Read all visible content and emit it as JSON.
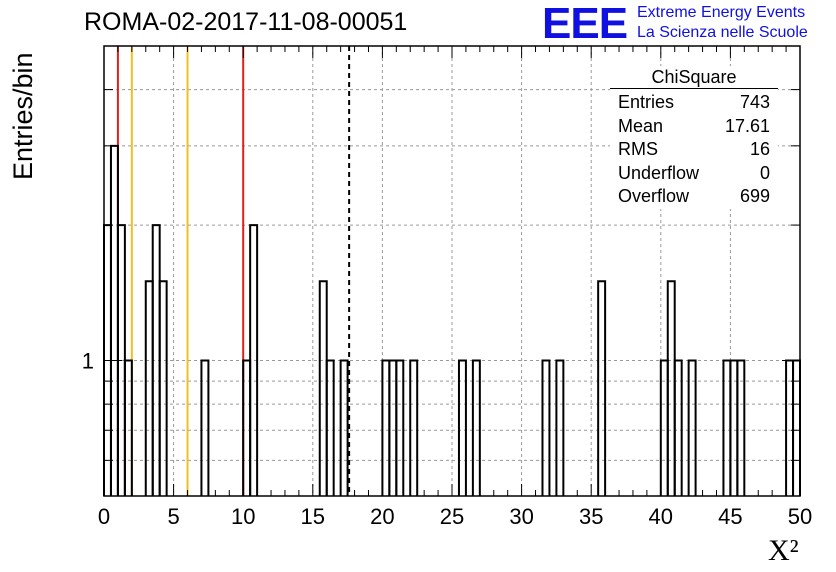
{
  "title": "ROMA-02-2017-11-08-00051",
  "logo": {
    "mark": "EEE",
    "line1": "Extreme Energy Events",
    "line2": "La Scienza nelle Scuole",
    "color": "#1010e0"
  },
  "stats_box": {
    "name": "ChiSquare",
    "rows": [
      {
        "label": "Entries",
        "value": "743"
      },
      {
        "label": "Mean",
        "value": "17.61"
      },
      {
        "label": "RMS",
        "value": "16"
      },
      {
        "label": "Underflow",
        "value": "0"
      },
      {
        "label": "Overflow",
        "value": "699"
      }
    ]
  },
  "chart_data": {
    "type": "histogram",
    "title": "ROMA-02-2017-11-08-00051",
    "xlabel": "X²",
    "ylabel": "Entries/bin",
    "xlim": [
      0,
      50
    ],
    "ylim": [
      0.5,
      5
    ],
    "y_scale": "log",
    "grid": true,
    "bin_width": 0.5,
    "x_ticks": [
      0,
      5,
      10,
      15,
      20,
      25,
      30,
      35,
      40,
      45,
      50
    ],
    "y_tick_labels": [
      "1"
    ],
    "bins": [
      {
        "x": 0.0,
        "y": 2
      },
      {
        "x": 0.5,
        "y": 3
      },
      {
        "x": 1.0,
        "y": 2
      },
      {
        "x": 1.5,
        "y": 1
      },
      {
        "x": 3.0,
        "y": 1.5
      },
      {
        "x": 3.5,
        "y": 2
      },
      {
        "x": 4.0,
        "y": 1.5
      },
      {
        "x": 7.0,
        "y": 1
      },
      {
        "x": 10.0,
        "y": 1
      },
      {
        "x": 10.5,
        "y": 2
      },
      {
        "x": 15.5,
        "y": 1.5
      },
      {
        "x": 16.0,
        "y": 1
      },
      {
        "x": 17.0,
        "y": 1
      },
      {
        "x": 20.0,
        "y": 1
      },
      {
        "x": 20.5,
        "y": 1
      },
      {
        "x": 21.0,
        "y": 1
      },
      {
        "x": 22.0,
        "y": 1
      },
      {
        "x": 25.5,
        "y": 1
      },
      {
        "x": 26.5,
        "y": 1
      },
      {
        "x": 31.5,
        "y": 1
      },
      {
        "x": 32.5,
        "y": 1
      },
      {
        "x": 35.5,
        "y": 1.5
      },
      {
        "x": 40.0,
        "y": 1
      },
      {
        "x": 40.5,
        "y": 1.5
      },
      {
        "x": 41.0,
        "y": 1
      },
      {
        "x": 42.0,
        "y": 1
      },
      {
        "x": 44.5,
        "y": 1
      },
      {
        "x": 45.0,
        "y": 1
      },
      {
        "x": 45.5,
        "y": 1
      },
      {
        "x": 49.0,
        "y": 1
      },
      {
        "x": 49.5,
        "y": 1
      }
    ],
    "reference_lines": [
      {
        "x": 1.0,
        "color": "#e02020",
        "style": "solid"
      },
      {
        "x": 2.0,
        "color": "#f0c020",
        "style": "solid"
      },
      {
        "x": 6.0,
        "color": "#f0c020",
        "style": "solid"
      },
      {
        "x": 10.0,
        "color": "#e02020",
        "style": "solid"
      },
      {
        "x": 17.61,
        "color": "#000000",
        "style": "dashed"
      }
    ]
  }
}
